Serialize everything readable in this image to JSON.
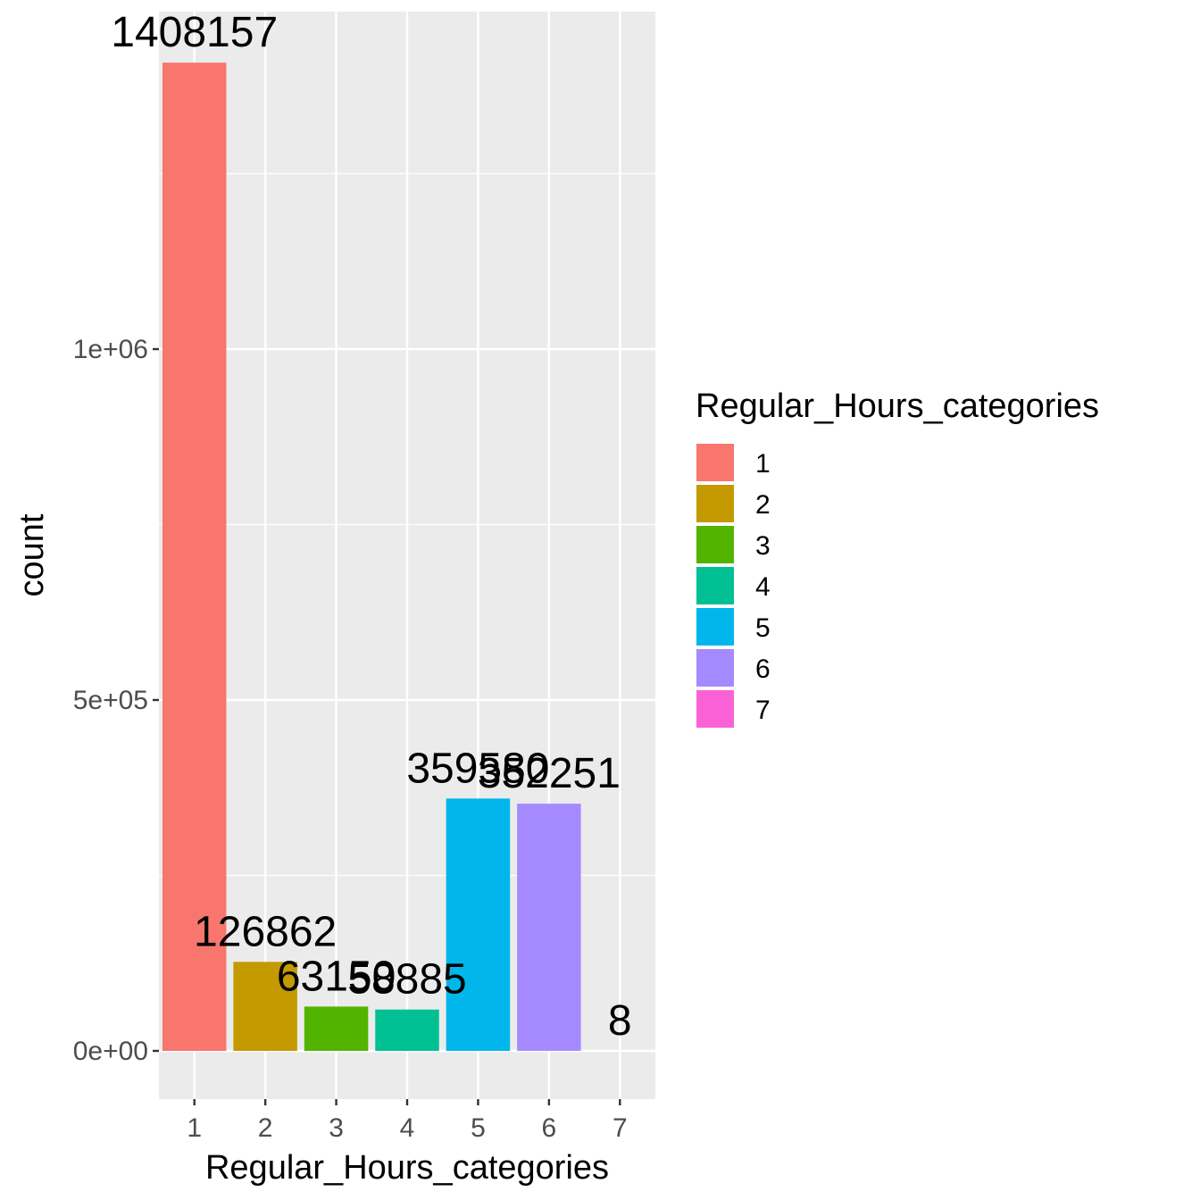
{
  "chart_data": {
    "type": "bar",
    "categories": [
      "1",
      "2",
      "3",
      "4",
      "5",
      "6",
      "7"
    ],
    "values": [
      1408157,
      126862,
      63150,
      58885,
      359580,
      352251,
      8
    ],
    "data_labels": [
      "1408157",
      "126862",
      "63150",
      "58885",
      "359580",
      "352251",
      "8"
    ],
    "xlabel": "Regular_Hours_categories",
    "ylabel": "count",
    "yticks": [
      0,
      500000,
      1000000
    ],
    "ytick_labels": [
      "0e+00",
      "5e+05",
      "1e+06"
    ],
    "ylim": [
      -70000,
      1475000
    ],
    "grid": true,
    "colors": [
      "#F8766D",
      "#C49A00",
      "#53B400",
      "#00C094",
      "#00B6EB",
      "#A58AFF",
      "#FB61D7"
    ],
    "panel_background": "#EBEBEB",
    "legend": {
      "title": "Regular_Hours_categories",
      "placement": "right",
      "items": [
        "1",
        "2",
        "3",
        "4",
        "5",
        "6",
        "7"
      ]
    }
  }
}
